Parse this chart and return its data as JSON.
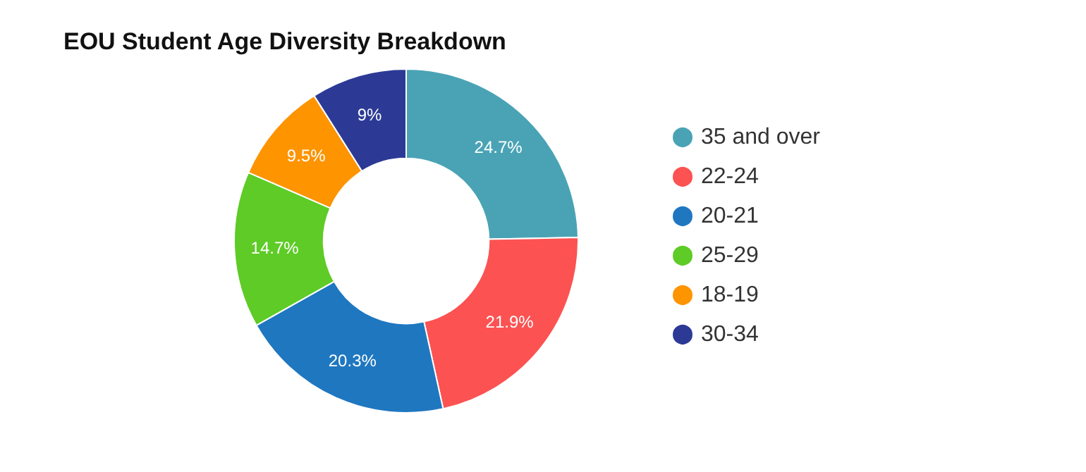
{
  "chart_data": {
    "type": "donut",
    "title": "EOU Student Age Diversity Breakdown",
    "categories": [
      "35 and over",
      "22-24",
      "20-21",
      "25-29",
      "18-19",
      "30-34"
    ],
    "values": [
      24.7,
      21.9,
      20.3,
      14.7,
      9.5,
      9
    ],
    "value_labels": [
      "24.7%",
      "21.9%",
      "20.3%",
      "14.7%",
      "9.5%",
      "9%"
    ],
    "colors": [
      "#4aa3b5",
      "#fc5252",
      "#1f77c0",
      "#5ecb26",
      "#fd9400",
      "#2c3a96"
    ],
    "legend": "right"
  }
}
